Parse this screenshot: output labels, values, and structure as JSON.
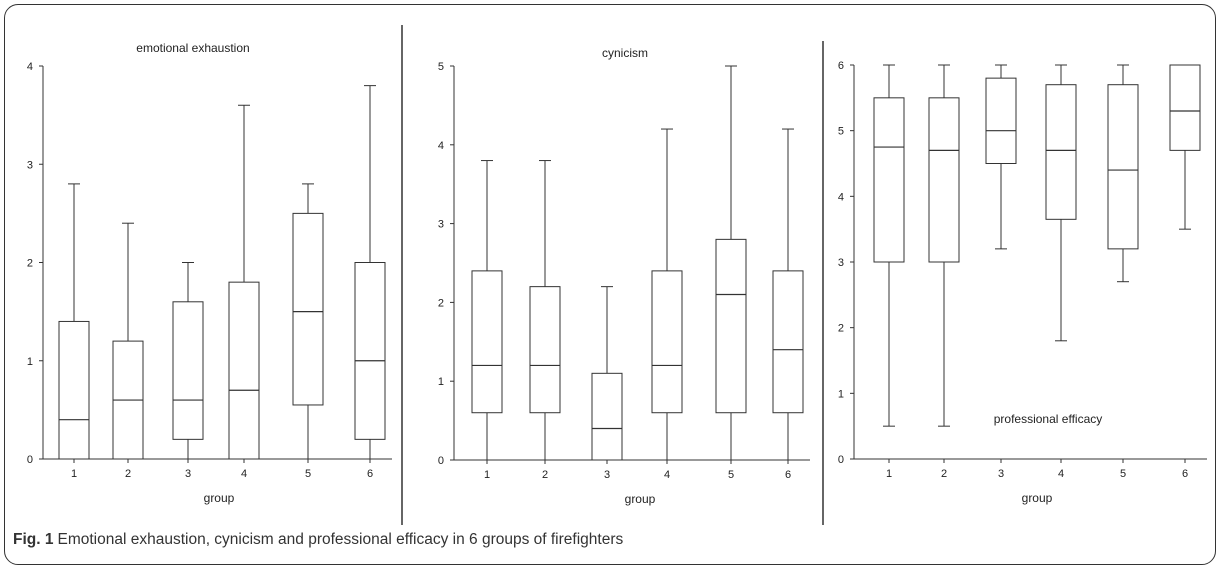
{
  "caption": {
    "label": "Fig. 1",
    "text": "Emotional exhaustion, cynicism and professional efficacy in 6 groups of firefighters"
  },
  "chart_data": [
    {
      "type": "boxplot",
      "title": "emotional exhaustion",
      "xlabel": "group",
      "ylabel": "",
      "ylim": [
        0,
        4
      ],
      "yticks": [
        0,
        1,
        2,
        3,
        4
      ],
      "categories": [
        "1",
        "2",
        "3",
        "4",
        "5",
        "6"
      ],
      "boxes": [
        {
          "group": "1",
          "min": 0,
          "q1": 0,
          "median": 0.4,
          "q3": 1.4,
          "max": 2.8
        },
        {
          "group": "2",
          "min": 0,
          "q1": 0,
          "median": 0.6,
          "q3": 1.2,
          "max": 2.4
        },
        {
          "group": "3",
          "min": 0,
          "q1": 0.2,
          "median": 0.6,
          "q3": 1.6,
          "max": 2.0
        },
        {
          "group": "4",
          "min": 0,
          "q1": 0,
          "median": 0.7,
          "q3": 1.8,
          "max": 3.6
        },
        {
          "group": "5",
          "min": 0,
          "q1": 0.55,
          "median": 1.5,
          "q3": 2.5,
          "max": 2.8
        },
        {
          "group": "6",
          "min": 0,
          "q1": 0.2,
          "median": 1.0,
          "q3": 2.0,
          "max": 3.8
        }
      ]
    },
    {
      "type": "boxplot",
      "title": "cynicism",
      "xlabel": "group",
      "ylabel": "",
      "ylim": [
        0,
        5
      ],
      "yticks": [
        0,
        1,
        2,
        3,
        4,
        5
      ],
      "categories": [
        "1",
        "2",
        "3",
        "4",
        "5",
        "6"
      ],
      "boxes": [
        {
          "group": "1",
          "min": 0,
          "q1": 0.6,
          "median": 1.2,
          "q3": 2.4,
          "max": 3.8
        },
        {
          "group": "2",
          "min": 0,
          "q1": 0.6,
          "median": 1.2,
          "q3": 2.2,
          "max": 3.8
        },
        {
          "group": "3",
          "min": 0,
          "q1": 0,
          "median": 0.4,
          "q3": 1.1,
          "max": 2.2
        },
        {
          "group": "4",
          "min": 0,
          "q1": 0.6,
          "median": 1.2,
          "q3": 2.4,
          "max": 4.2
        },
        {
          "group": "5",
          "min": 0,
          "q1": 0.6,
          "median": 2.1,
          "q3": 2.8,
          "max": 5.0
        },
        {
          "group": "6",
          "min": 0,
          "q1": 0.6,
          "median": 1.4,
          "q3": 2.4,
          "max": 4.2
        }
      ]
    },
    {
      "type": "boxplot",
      "title": "professional efficacy",
      "xlabel": "group",
      "ylabel": "",
      "ylim": [
        0,
        6
      ],
      "yticks": [
        0,
        1,
        2,
        3,
        4,
        5,
        6
      ],
      "categories": [
        "1",
        "2",
        "3",
        "4",
        "5",
        "6"
      ],
      "boxes": [
        {
          "group": "1",
          "min": 0.5,
          "q1": 3.0,
          "median": 4.75,
          "q3": 5.5,
          "max": 6.0
        },
        {
          "group": "2",
          "min": 0.5,
          "q1": 3.0,
          "median": 4.7,
          "q3": 5.5,
          "max": 6.0
        },
        {
          "group": "3",
          "min": 3.2,
          "q1": 4.5,
          "median": 5.0,
          "q3": 5.8,
          "max": 6.0
        },
        {
          "group": "4",
          "min": 1.8,
          "q1": 3.65,
          "median": 4.7,
          "q3": 5.7,
          "max": 6.0
        },
        {
          "group": "5",
          "min": 2.7,
          "q1": 3.2,
          "median": 4.4,
          "q3": 5.7,
          "max": 6.0
        },
        {
          "group": "6",
          "min": 3.5,
          "q1": 4.7,
          "median": 5.3,
          "q3": 6.0,
          "max": 6.0
        }
      ]
    }
  ]
}
